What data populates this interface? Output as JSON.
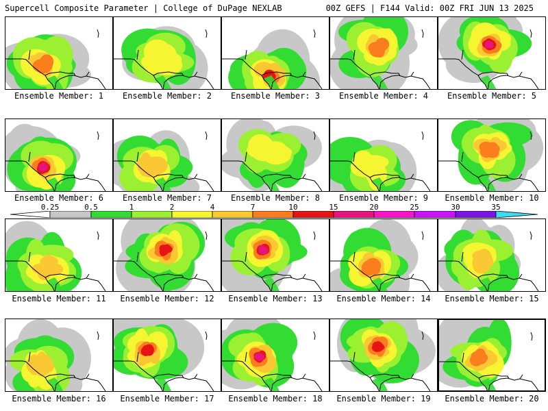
{
  "header": {
    "title": "Supercell Composite Parameter | College of DuPage NEXLAB",
    "run_info": "00Z GEFS | F144 Valid: 00Z FRI JUN 13 2025"
  },
  "colorbar": {
    "ticks": [
      "0.25",
      "0.5",
      "1",
      "2",
      "4",
      "7",
      "10",
      "15",
      "20",
      "25",
      "30",
      "35"
    ],
    "colors": [
      "#c8c8c8",
      "#32dc32",
      "#9bf032",
      "#f5f532",
      "#fac832",
      "#fa7d1e",
      "#e61414",
      "#e6147d",
      "#fa14c8",
      "#c814fa",
      "#7d14e6",
      "#b464e6",
      "#3cdcf0"
    ]
  },
  "members": [
    {
      "label": "Ensemble Member: 1"
    },
    {
      "label": "Ensemble Member: 2"
    },
    {
      "label": "Ensemble Member: 3"
    },
    {
      "label": "Ensemble Member: 4"
    },
    {
      "label": "Ensemble Member: 5"
    },
    {
      "label": "Ensemble Member: 6"
    },
    {
      "label": "Ensemble Member: 7"
    },
    {
      "label": "Ensemble Member: 8"
    },
    {
      "label": "Ensemble Member: 9"
    },
    {
      "label": "Ensemble Member: 10"
    },
    {
      "label": "Ensemble Member: 11"
    },
    {
      "label": "Ensemble Member: 12"
    },
    {
      "label": "Ensemble Member: 13"
    },
    {
      "label": "Ensemble Member: 14"
    },
    {
      "label": "Ensemble Member: 15"
    },
    {
      "label": "Ensemble Member: 16"
    },
    {
      "label": "Ensemble Member: 17"
    },
    {
      "label": "Ensemble Member: 18"
    },
    {
      "label": "Ensemble Member: 19"
    },
    {
      "label": "Ensemble Member: 20",
      "selected": true
    }
  ]
}
